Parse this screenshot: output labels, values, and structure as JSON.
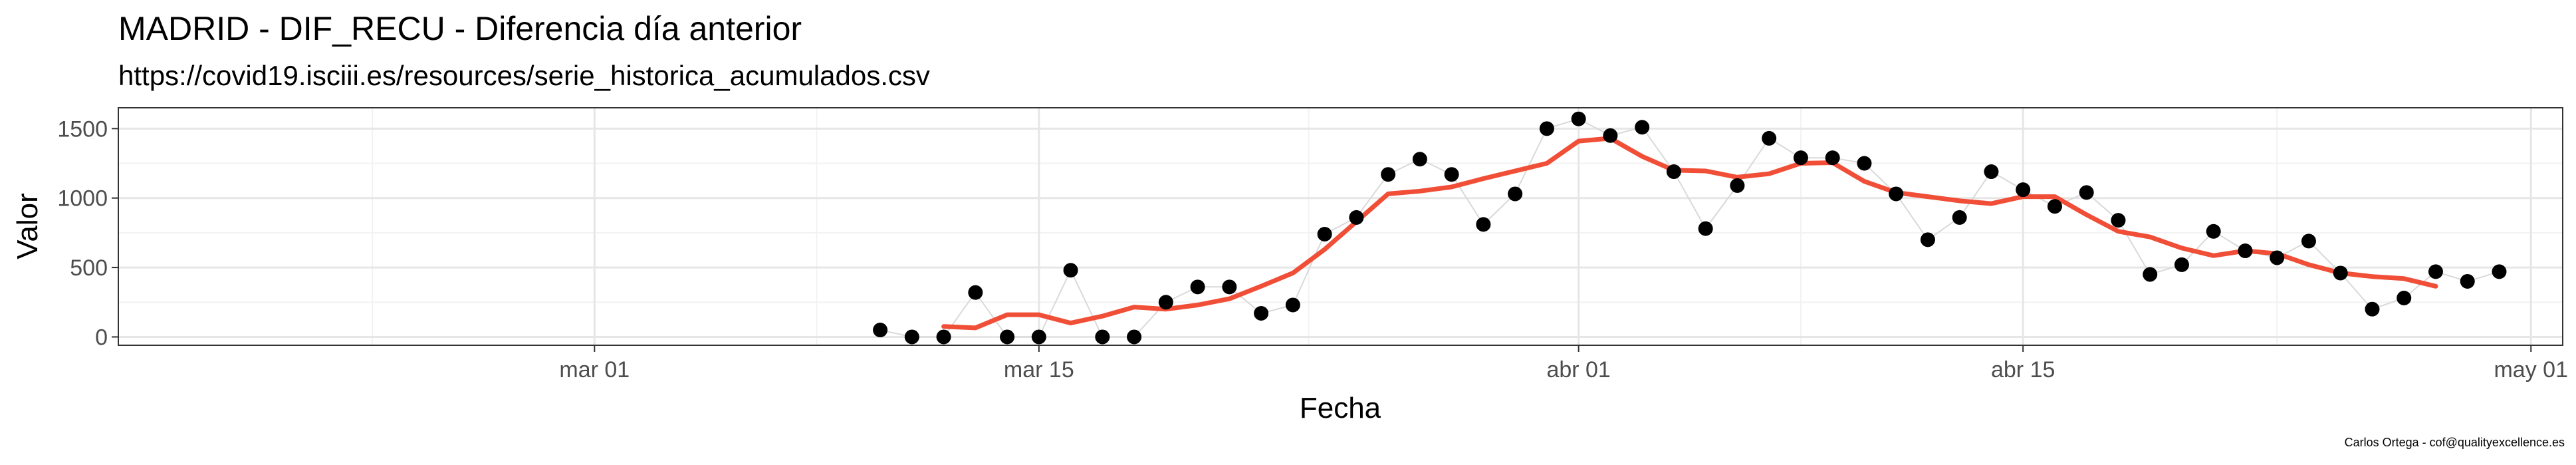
{
  "title": "MADRID - DIF_RECU - Diferencia día anterior",
  "subtitle": "https://covid19.isciii.es/resources/serie_historica_acumulados.csv",
  "caption": "Carlos Ortega - cof@qualityexcellence.es",
  "colors": {
    "points": "#000000",
    "connector": "#d9d9d9",
    "smooth_line": "#f04e37",
    "panel_border": "#333333",
    "grid_major": "#e6e6e6",
    "grid_minor": "#f2f2f2"
  },
  "chart_data": {
    "type": "scatter",
    "title": "MADRID - DIF_RECU - Diferencia día anterior",
    "subtitle": "https://covid19.isciii.es/resources/serie_historica_acumulados.csv",
    "xlabel": "Fecha",
    "ylabel": "Valor",
    "xlim": [
      "2020-02-15",
      "2020-05-02"
    ],
    "ylim": [
      -60,
      1650
    ],
    "x_ticks": [
      "2020-03-01",
      "2020-03-15",
      "2020-04-01",
      "2020-04-15",
      "2020-05-01"
    ],
    "x_tick_labels": [
      "mar 01",
      "mar 15",
      "abr 01",
      "abr 15",
      "may 01"
    ],
    "y_ticks": [
      0,
      500,
      1000,
      1500
    ],
    "y_tick_labels": [
      "0",
      "500",
      "1000",
      "1500"
    ],
    "grid": true,
    "legend": "none",
    "series": [
      {
        "type": "scatter",
        "x": [
          "2020-03-10",
          "2020-03-11",
          "2020-03-12",
          "2020-03-13",
          "2020-03-14",
          "2020-03-15",
          "2020-03-16",
          "2020-03-17",
          "2020-03-18",
          "2020-03-19",
          "2020-03-20",
          "2020-03-21",
          "2020-03-22",
          "2020-03-23",
          "2020-03-24",
          "2020-03-25",
          "2020-03-26",
          "2020-03-27",
          "2020-03-28",
          "2020-03-29",
          "2020-03-30",
          "2020-03-31",
          "2020-04-01",
          "2020-04-02",
          "2020-04-03",
          "2020-04-04",
          "2020-04-05",
          "2020-04-06",
          "2020-04-07",
          "2020-04-08",
          "2020-04-09",
          "2020-04-10",
          "2020-04-11",
          "2020-04-12",
          "2020-04-13",
          "2020-04-14",
          "2020-04-15",
          "2020-04-16",
          "2020-04-17",
          "2020-04-18",
          "2020-04-19",
          "2020-04-20",
          "2020-04-21",
          "2020-04-22",
          "2020-04-23",
          "2020-04-24",
          "2020-04-25",
          "2020-04-26",
          "2020-04-27",
          "2020-04-28",
          "2020-04-29",
          "2020-04-30"
        ],
        "values": [
          50,
          0,
          0,
          320,
          0,
          0,
          480,
          0,
          0,
          250,
          360,
          360,
          170,
          230,
          740,
          860,
          1170,
          1280,
          1170,
          810,
          1030,
          1500,
          1570,
          1450,
          1510,
          1190,
          780,
          1090,
          1430,
          1290,
          1290,
          1250,
          1030,
          700,
          860,
          1190,
          1060,
          940,
          1040,
          840,
          450,
          520,
          760,
          620,
          570,
          690,
          460,
          200,
          280,
          470,
          400,
          470
        ]
      },
      {
        "type": "line",
        "x": [
          "2020-03-12",
          "2020-03-13",
          "2020-03-14",
          "2020-03-15",
          "2020-03-16",
          "2020-03-17",
          "2020-03-18",
          "2020-03-19",
          "2020-03-20",
          "2020-03-21",
          "2020-03-22",
          "2020-03-23",
          "2020-03-24",
          "2020-03-25",
          "2020-03-26",
          "2020-03-27",
          "2020-03-28",
          "2020-03-29",
          "2020-03-30",
          "2020-03-31",
          "2020-04-01",
          "2020-04-02",
          "2020-04-03",
          "2020-04-04",
          "2020-04-05",
          "2020-04-06",
          "2020-04-07",
          "2020-04-08",
          "2020-04-09",
          "2020-04-10",
          "2020-04-11",
          "2020-04-12",
          "2020-04-13",
          "2020-04-14",
          "2020-04-15",
          "2020-04-16",
          "2020-04-17",
          "2020-04-18",
          "2020-04-19",
          "2020-04-20",
          "2020-04-21",
          "2020-04-22",
          "2020-04-23",
          "2020-04-24",
          "2020-04-25",
          "2020-04-26",
          "2020-04-27",
          "2020-04-28"
        ],
        "values": [
          75,
          65,
          160,
          160,
          100,
          150,
          215,
          200,
          230,
          275,
          365,
          460,
          630,
          830,
          1030,
          1050,
          1080,
          1140,
          1195,
          1250,
          1410,
          1430,
          1300,
          1200,
          1195,
          1150,
          1175,
          1250,
          1255,
          1120,
          1040,
          1010,
          980,
          960,
          1010,
          1010,
          880,
          760,
          720,
          640,
          585,
          620,
          600,
          520,
          460,
          435,
          420,
          365
        ]
      }
    ]
  }
}
